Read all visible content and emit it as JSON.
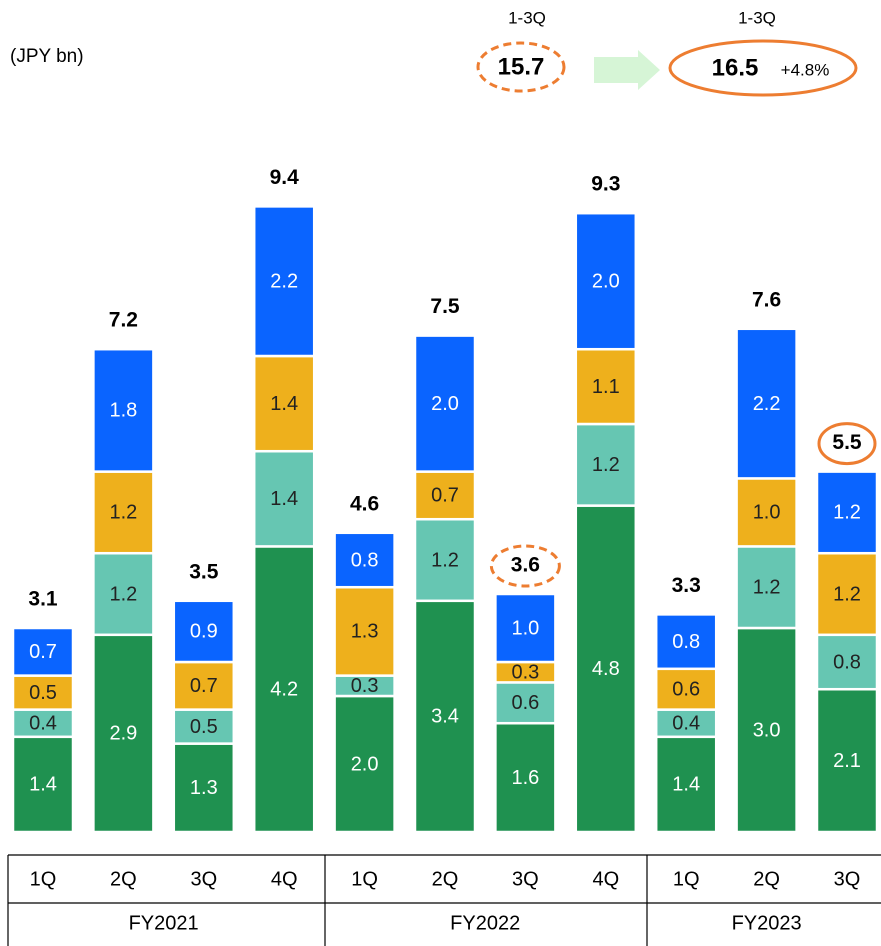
{
  "chart_data": {
    "type": "stacked_bar",
    "groups": [
      {
        "name": "FY2021",
        "categories": [
          "1Q",
          "2Q",
          "3Q",
          "4Q"
        ]
      },
      {
        "name": "FY2022",
        "categories": [
          "1Q",
          "2Q",
          "3Q",
          "4Q"
        ]
      },
      {
        "name": "FY2023",
        "categories": [
          "1Q",
          "2Q",
          "3Q"
        ]
      }
    ],
    "series": [
      {
        "color": "#1f9150",
        "values": [
          1.4,
          2.9,
          1.3,
          4.2,
          2.0,
          3.4,
          1.6,
          4.8,
          1.4,
          3.0,
          2.1
        ],
        "value_labels": [
          "1.4",
          "2.9",
          "1.3",
          "4.2",
          "2.0",
          "3.4",
          "1.6",
          "4.8",
          "1.4",
          "3.0",
          "2.1"
        ]
      },
      {
        "color": "#66c6b2",
        "values": [
          0.4,
          1.2,
          0.5,
          1.4,
          0.3,
          1.2,
          0.6,
          1.2,
          0.4,
          1.2,
          0.8
        ],
        "value_labels": [
          "0.4",
          "1.2",
          "0.5",
          "1.4",
          "0.3",
          "1.2",
          "0.6",
          "1.2",
          "0.4",
          "1.2",
          "0.8"
        ]
      },
      {
        "color": "#eeb01c",
        "values": [
          0.5,
          1.2,
          0.7,
          1.4,
          1.3,
          0.7,
          0.3,
          1.1,
          0.6,
          1.0,
          1.2
        ],
        "value_labels": [
          "0.5",
          "1.2",
          "0.7",
          "1.4",
          "1.3",
          "0.7",
          "0.3",
          "1.1",
          "0.6",
          "1.0",
          "1.2"
        ]
      },
      {
        "color": "#0a64ff",
        "values": [
          0.7,
          1.8,
          0.9,
          2.2,
          0.8,
          2.0,
          1.0,
          2.0,
          0.8,
          2.2,
          1.2
        ],
        "value_labels": [
          "0.7",
          "1.8",
          "0.9",
          "2.2",
          "0.8",
          "2.0",
          "1.0",
          "2.0",
          "0.8",
          "2.2",
          "1.2"
        ]
      }
    ],
    "totals": [
      3.1,
      7.2,
      3.5,
      9.4,
      4.6,
      7.5,
      3.6,
      9.3,
      3.3,
      7.6,
      5.5
    ],
    "ylim": [
      0,
      11
    ],
    "annotations": {
      "unit": "(JPY bn)",
      "period_prev": "1-3Q",
      "value_prev": "15.7",
      "period_curr": "1-3Q",
      "value_curr": "16.5",
      "growth": "+4.8%"
    }
  }
}
